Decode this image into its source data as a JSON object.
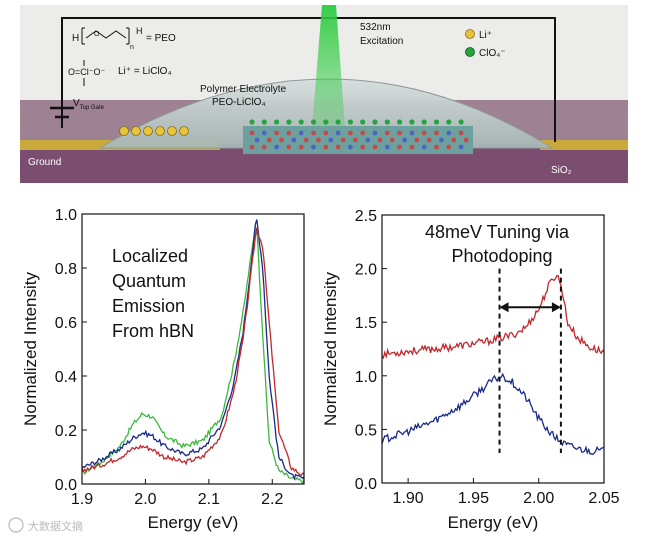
{
  "schematic": {
    "peo_label": "= PEO",
    "peo_h_left": "H",
    "peo_h_right": "H",
    "peo_o": "O",
    "peo_n": "n",
    "lithium_label": "Li⁺ = LiClO₄",
    "perchlorate_formula": "O=Cl⁻O⁻",
    "vtg_main": "V",
    "vtg_sub": "Top Gate",
    "ground": "Ground",
    "electrolyte_line1": "Polymer Electrolyte",
    "electrolyte_line2": "PEO-LiClO₄",
    "laser_line1": "532nm",
    "laser_line2": "Excitation",
    "legend_li": "Li⁺",
    "legend_clo4": "ClO₄⁻",
    "substrate": "SiO₂",
    "colors": {
      "silicon": "#8a5a7e",
      "oxide": "#a78a9f",
      "electrolyte": "#b7c3c2",
      "laser": "#2ecc40",
      "gold": "#d6b54a"
    }
  },
  "watermark": "大数据文摘",
  "chart_data": [
    {
      "type": "line",
      "title": "",
      "annotation": [
        "Localized",
        "Quantum",
        "Emission",
        "From hBN"
      ],
      "xlabel": "Energy (eV)",
      "ylabel": "Normalized Intensity",
      "xlim": [
        1.9,
        2.25
      ],
      "ylim": [
        0.0,
        1.0
      ],
      "xticks": [
        1.9,
        2.0,
        2.1,
        2.2
      ],
      "xtick_labels": [
        "1.9",
        "2.0",
        "2.1",
        "2.2"
      ],
      "yticks": [
        0.0,
        0.2,
        0.4,
        0.6,
        0.8,
        1.0
      ],
      "ytick_labels": [
        "0.0",
        "0.2",
        "0.4",
        "0.6",
        "0.8",
        "1.0"
      ],
      "series": [
        {
          "name": "green",
          "color": "#3db83d",
          "x": [
            1.9,
            1.93,
            1.96,
            1.98,
            1.995,
            2.01,
            2.03,
            2.06,
            2.09,
            2.12,
            2.14,
            2.155,
            2.165,
            2.175,
            2.185,
            2.195,
            2.21,
            2.23,
            2.25
          ],
          "y": [
            0.04,
            0.08,
            0.14,
            0.22,
            0.26,
            0.25,
            0.18,
            0.14,
            0.16,
            0.25,
            0.45,
            0.65,
            0.82,
            0.98,
            0.55,
            0.16,
            0.05,
            0.02,
            0.01
          ]
        },
        {
          "name": "navy",
          "color": "#1a2a8a",
          "x": [
            1.9,
            1.93,
            1.96,
            1.98,
            1.995,
            2.01,
            2.03,
            2.06,
            2.09,
            2.12,
            2.14,
            2.155,
            2.165,
            2.175,
            2.185,
            2.195,
            2.21,
            2.23,
            2.25
          ],
          "y": [
            0.06,
            0.09,
            0.13,
            0.17,
            0.19,
            0.18,
            0.14,
            0.11,
            0.13,
            0.22,
            0.38,
            0.58,
            0.78,
            0.99,
            0.8,
            0.4,
            0.1,
            0.03,
            0.02
          ]
        },
        {
          "name": "red",
          "color": "#c0282c",
          "x": [
            1.9,
            1.93,
            1.96,
            1.98,
            1.995,
            2.01,
            2.03,
            2.06,
            2.09,
            2.12,
            2.14,
            2.155,
            2.165,
            2.175,
            2.185,
            2.195,
            2.21,
            2.23,
            2.25
          ],
          "y": [
            0.05,
            0.07,
            0.1,
            0.13,
            0.14,
            0.13,
            0.1,
            0.08,
            0.1,
            0.18,
            0.35,
            0.55,
            0.75,
            0.95,
            0.88,
            0.6,
            0.2,
            0.06,
            0.03
          ]
        }
      ]
    },
    {
      "type": "line",
      "title": "48meV Tuning via Photodoping",
      "title_lines": [
        "48meV Tuning via",
        "Photodoping"
      ],
      "xlabel": "Energy (eV)",
      "ylabel": "Normalized Intensity",
      "xlim": [
        1.88,
        2.05
      ],
      "ylim": [
        0.0,
        2.5
      ],
      "xticks": [
        1.9,
        1.95,
        2.0,
        2.05
      ],
      "xtick_labels": [
        "1.90",
        "1.95",
        "2.00",
        "2.05"
      ],
      "yticks": [
        0.0,
        0.5,
        1.0,
        1.5,
        2.0,
        2.5
      ],
      "ytick_labels": [
        "0.0",
        "0.5",
        "1.0",
        "1.5",
        "2.0",
        "2.5"
      ],
      "markers_x": [
        1.97,
        2.017
      ],
      "series": [
        {
          "name": "red",
          "color": "#c0282c",
          "x": [
            1.88,
            1.9,
            1.92,
            1.94,
            1.96,
            1.98,
            1.99,
            2.0,
            2.008,
            2.014,
            2.018,
            2.022,
            2.03,
            2.04,
            2.05
          ],
          "y": [
            1.2,
            1.23,
            1.25,
            1.28,
            1.32,
            1.38,
            1.45,
            1.62,
            1.85,
            1.95,
            1.8,
            1.5,
            1.35,
            1.26,
            1.22
          ]
        },
        {
          "name": "navy",
          "color": "#1a2a8a",
          "x": [
            1.88,
            1.9,
            1.92,
            1.94,
            1.955,
            1.965,
            1.972,
            1.98,
            1.99,
            2.0,
            2.01,
            2.02,
            2.03,
            2.04,
            2.05
          ],
          "y": [
            0.4,
            0.48,
            0.58,
            0.72,
            0.86,
            0.96,
            1.0,
            0.94,
            0.8,
            0.6,
            0.45,
            0.36,
            0.32,
            0.3,
            0.3
          ]
        }
      ]
    }
  ]
}
